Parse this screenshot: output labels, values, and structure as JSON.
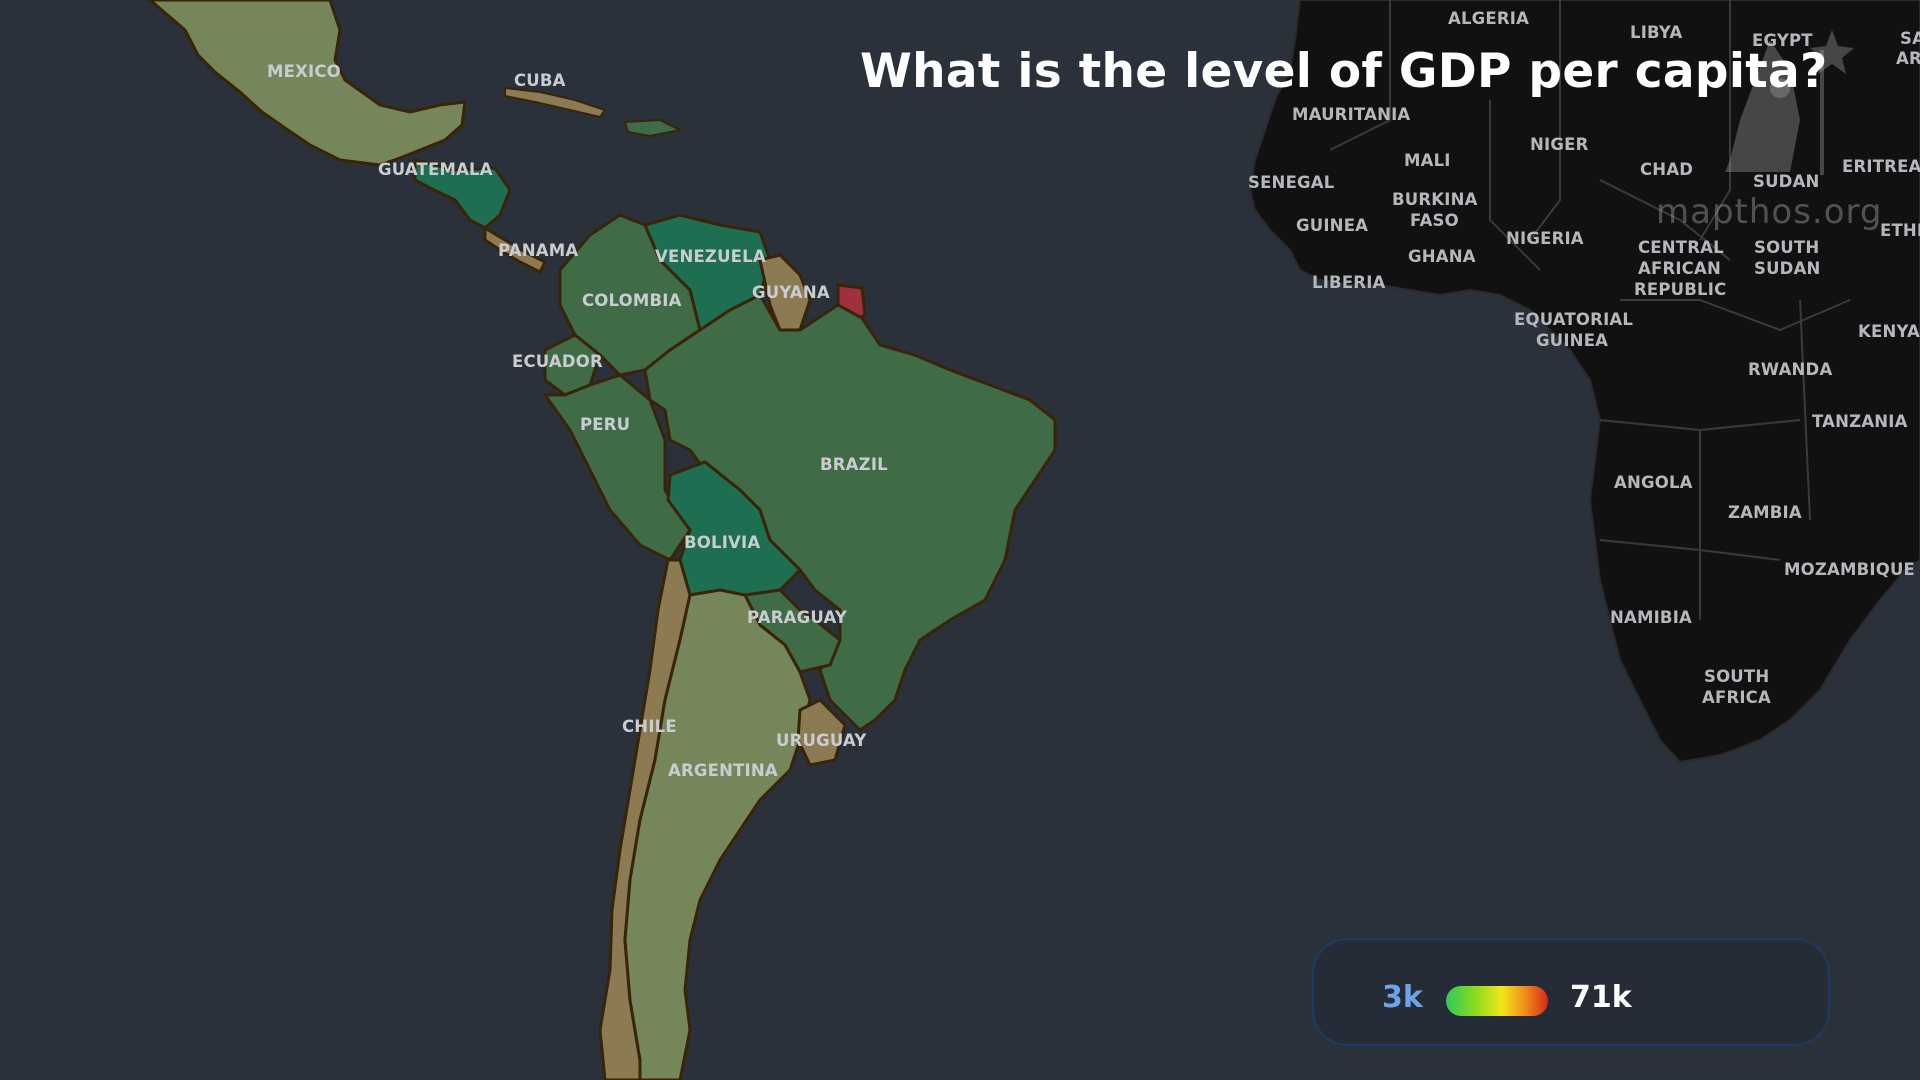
{
  "title": "What is the level of GDP per capita?",
  "watermark": "mapthos.org",
  "legend": {
    "min_label": "3k",
    "max_label": "71k",
    "scale_colors": [
      "#2fc85a",
      "#8fdc1a",
      "#f3e61a",
      "#f08a1a",
      "#d62a1a"
    ]
  },
  "colors": {
    "ocean": "#2a313b",
    "africa_land": "#111111",
    "border": "#3a2408",
    "high_green": "#1e6e52",
    "mid_green": "#3f6b47",
    "olive": "#75875a",
    "tan": "#8c7a52",
    "red": "#a03040"
  },
  "labels": {
    "mexico": "MEXICO",
    "cuba": "CUBA",
    "guatemala": "GUATEMALA",
    "panama": "PANAMA",
    "venezuela": "VENEZUELA",
    "guyana": "GUYANA",
    "colombia": "COLOMBIA",
    "ecuador": "ECUADOR",
    "peru": "PERU",
    "brazil": "BRAZIL",
    "bolivia": "BOLIVIA",
    "paraguay": "PARAGUAY",
    "chile": "CHILE",
    "uruguay": "URUGUAY",
    "argentina": "ARGENTINA",
    "algeria": "ALGERIA",
    "libya": "LIBYA",
    "egypt": "EGYPT",
    "mauritania": "MAURITANIA",
    "mali": "MALI",
    "niger": "NIGER",
    "chad": "CHAD",
    "sudan": "SUDAN",
    "eritrea": "ERITREA",
    "senegal": "SENEGAL",
    "burkina": "BURKINA",
    "faso": "FASO",
    "guinea": "GUINEA",
    "nigeria": "NIGERIA",
    "ethiopia": "ETHIOPI",
    "central": "CENTRAL",
    "african": "AFRICAN",
    "republic": "REPUBLIC",
    "south_sudan_1": "SOUTH",
    "south_sudan_2": "SUDAN",
    "ghana": "GHANA",
    "liberia": "LIBERIA",
    "equatorial": "EQUATORIAL",
    "eq_guinea": "GUINEA",
    "kenya": "KENYA",
    "rwanda": "RWANDA",
    "tanzania": "TANZANIA",
    "angola": "ANGOLA",
    "zambia": "ZAMBIA",
    "mozambique": "MOZAMBIQUE",
    "namibia": "NAMIBIA",
    "south_africa_1": "SOUTH",
    "south_africa_2": "AFRICA",
    "sa_1": "SA",
    "ar_1": "AR"
  }
}
